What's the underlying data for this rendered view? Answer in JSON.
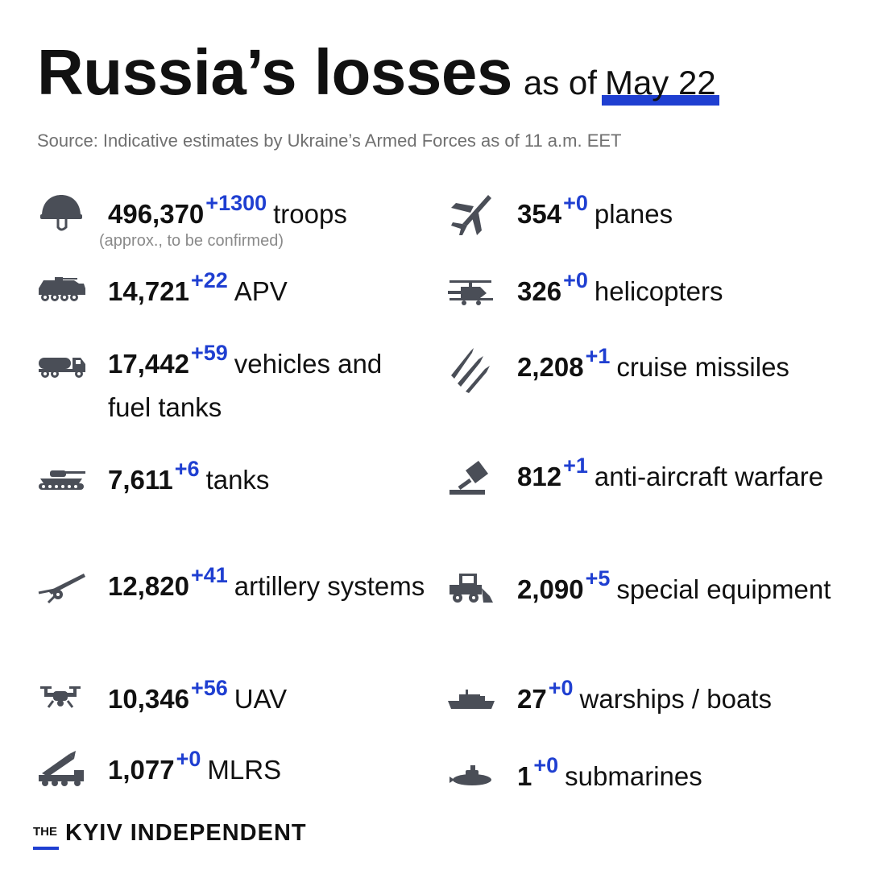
{
  "header": {
    "title": "Russia’s losses",
    "as_of": "as of",
    "date": "May 22",
    "source": "Source: Indicative estimates by Ukraine’s Armed Forces as of 11 a.m. EET"
  },
  "left": [
    {
      "icon": "helmet-icon",
      "value": "496,370",
      "delta": "+1300",
      "label": "troops",
      "note": "(approx., to be confirmed)"
    },
    {
      "icon": "apv-icon",
      "value": "14,721",
      "delta": "+22",
      "label": "APV"
    },
    {
      "icon": "fuel-truck-icon",
      "value": "17,442",
      "delta": "+59",
      "label": "vehicles and fuel tanks"
    },
    {
      "icon": "tank-icon",
      "value": "7,611",
      "delta": "+6",
      "label": "tanks"
    },
    {
      "icon": "artillery-icon",
      "value": "12,820",
      "delta": "+41",
      "label": "artillery systems"
    },
    {
      "icon": "drone-icon",
      "value": "10,346",
      "delta": "+56",
      "label": "UAV"
    },
    {
      "icon": "mlrs-icon",
      "value": "1,077",
      "delta": "+0",
      "label": "MLRS"
    }
  ],
  "right": [
    {
      "icon": "plane-icon",
      "value": "354",
      "delta": "+0",
      "label": "planes"
    },
    {
      "icon": "helicopter-icon",
      "value": "326",
      "delta": "+0",
      "label": "helicopters"
    },
    {
      "icon": "missiles-icon",
      "value": "2,208",
      "delta": "+1",
      "label": "cruise missiles"
    },
    {
      "icon": "anti-aircraft-icon",
      "value": "812",
      "delta": "+1",
      "label": "anti-aircraft warfare"
    },
    {
      "icon": "loader-icon",
      "value": "2,090",
      "delta": "+5",
      "label": "special equipment"
    },
    {
      "icon": "warship-icon",
      "value": "27",
      "delta": "+0",
      "label": "warships / boats"
    },
    {
      "icon": "submarine-icon",
      "value": "1",
      "delta": "+0",
      "label": "submarines"
    }
  ],
  "brand": {
    "the": "THE",
    "name": "KYIV INDEPENDENT"
  },
  "colors": {
    "accent": "#1f3fd1",
    "text": "#111111",
    "icon": "#4a4e57",
    "muted": "#707070"
  }
}
